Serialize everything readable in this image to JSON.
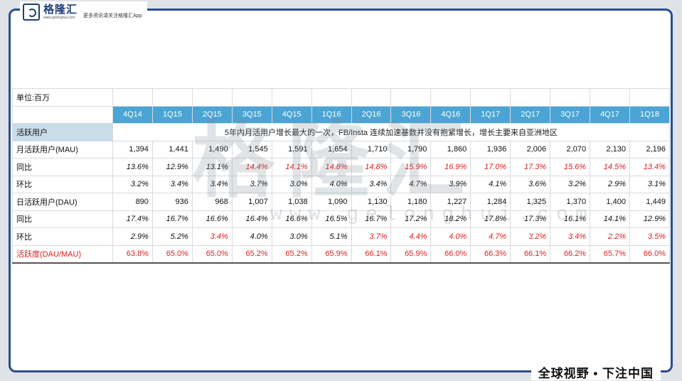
{
  "brand": {
    "name": "格隆汇",
    "domain": "www.gelonghui.com",
    "tagline": "更多资讯请关注格隆汇App",
    "slogan": "全球视野 • 下注中国",
    "watermark_main": "格隆汇",
    "watermark_sub": "www.gelonghui.com"
  },
  "colors": {
    "header_blue": "#4aa4d4",
    "section_blue": "#c9dcea",
    "red": "#e02020",
    "frame": "#2a4d8f"
  },
  "table": {
    "unit_label": "单位:百万",
    "quarters": [
      "4Q14",
      "1Q15",
      "2Q15",
      "3Q15",
      "4Q15",
      "1Q16",
      "2Q16",
      "3Q16",
      "4Q16",
      "1Q17",
      "2Q17",
      "3Q17",
      "4Q17",
      "1Q18"
    ],
    "section_label": "活跃用户",
    "section_note": "5年内月活用户增长最大的一次，FB/Insta 连续加速基数并没有抱紧增长，增长主要来自亚洲地区",
    "rows": [
      {
        "label": "月活跃用户(MAU)",
        "values": [
          "1,394",
          "1,441",
          "1,490",
          "1,545",
          "1,591",
          "1,654",
          "1,710",
          "1,790",
          "1,860",
          "1,936",
          "2,006",
          "2,070",
          "2,130",
          "2,196"
        ]
      },
      {
        "label": "同比",
        "values": [
          "13.6%",
          "12.9%",
          "13.1%",
          "14.4%",
          "14.1%",
          "14.8%",
          "14.8%",
          "15.9%",
          "16.9%",
          "17.0%",
          "17.3%",
          "15.6%",
          "14.5%",
          "13.4%"
        ]
      },
      {
        "label": "环比",
        "values": [
          "3.2%",
          "3.4%",
          "3.4%",
          "3.7%",
          "3.0%",
          "4.0%",
          "3.4%",
          "4.7%",
          "3.9%",
          "4.1%",
          "3.6%",
          "3.2%",
          "2.9%",
          "3.1%"
        ]
      },
      {
        "label": "日活跃用户(DAU)",
        "values": [
          "890",
          "936",
          "968",
          "1,007",
          "1,038",
          "1,090",
          "1,130",
          "1,180",
          "1,227",
          "1,284",
          "1,325",
          "1,370",
          "1,400",
          "1,449"
        ]
      },
      {
        "label": "同比",
        "values": [
          "17.4%",
          "16.7%",
          "16.6%",
          "16.4%",
          "16.6%",
          "16.5%",
          "16.7%",
          "17.2%",
          "18.2%",
          "17.8%",
          "17.3%",
          "16.1%",
          "14.1%",
          "12.9%"
        ]
      },
      {
        "label": "环比",
        "values": [
          "2.9%",
          "5.2%",
          "3.4%",
          "4.0%",
          "3.0%",
          "5.1%",
          "3.7%",
          "4.4%",
          "4.0%",
          "4.7%",
          "3.2%",
          "3.4%",
          "2.2%",
          "3.5%"
        ]
      },
      {
        "label": "活跃度(DAU/MAU)",
        "values": [
          "63.8%",
          "65.0%",
          "65.0%",
          "65.2%",
          "65.2%",
          "65.9%",
          "66.1%",
          "65.9%",
          "66.0%",
          "66.3%",
          "66.1%",
          "66.2%",
          "65.7%",
          "66.0%"
        ]
      }
    ]
  }
}
